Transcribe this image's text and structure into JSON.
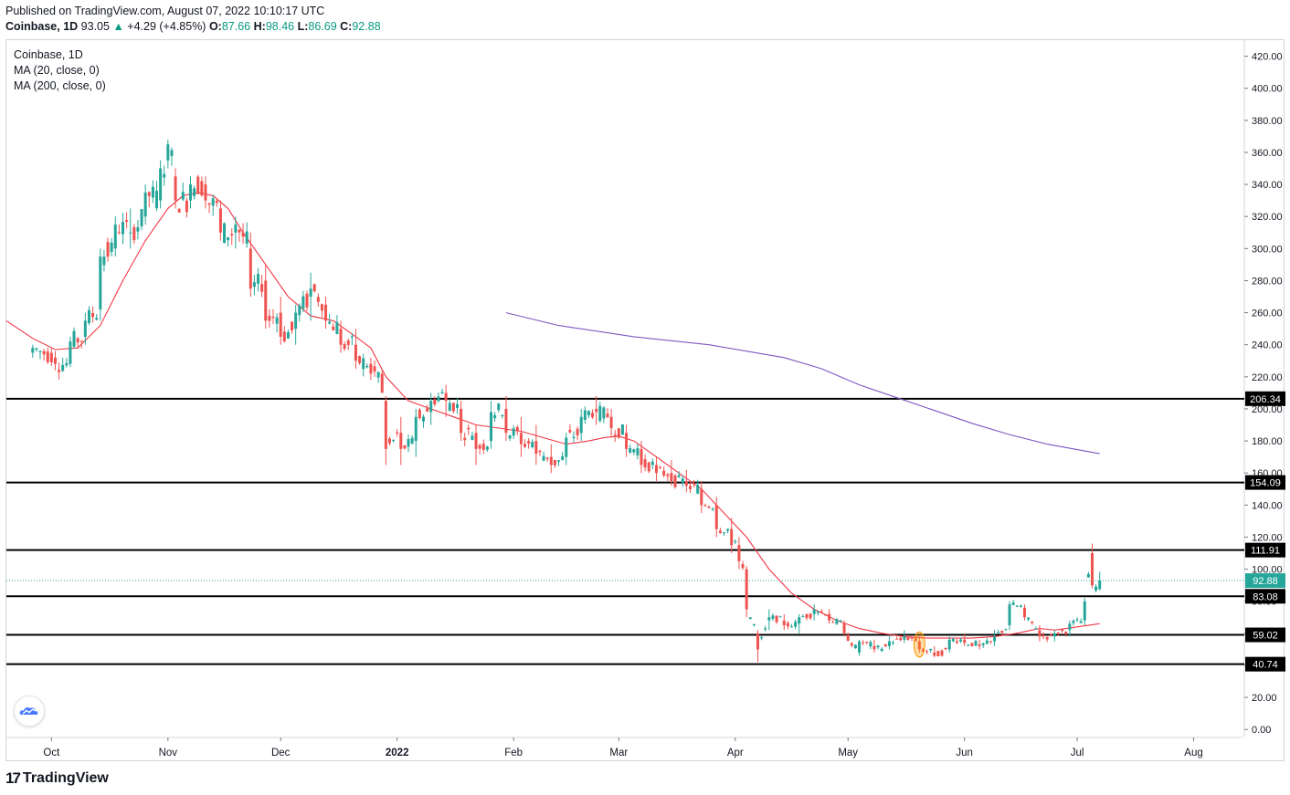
{
  "header": {
    "published": "Published on TradingView.com, August 07, 2022 10:10:17 UTC",
    "symbol": "Coinbase, 1D",
    "price": "93.05",
    "change_arrow": "▲",
    "change": "+4.29 (+4.85%)",
    "o_label": "O:",
    "o_value": "87.66",
    "h_label": "H:",
    "h_value": "98.46",
    "l_label": "L:",
    "l_value": "86.69",
    "c_label": "C:",
    "c_value": "92.88"
  },
  "legend": {
    "title": "Coinbase, 1D",
    "ma20": "MA (20, close, 0)",
    "ma200": "MA (200, close, 0)"
  },
  "footer": {
    "logo_mark": "17",
    "brand": "TradingView"
  },
  "colors": {
    "up": "#26a69a",
    "down": "#ef5350",
    "ma20": "#f23645",
    "ma200": "#7e57c2",
    "level": "#000000",
    "last_price": "#26a69a"
  },
  "chart_data": {
    "type": "candlestick",
    "title": "Coinbase, 1D",
    "ylim": [
      -5,
      430
    ],
    "y_ticks": [
      0,
      20,
      40,
      60,
      80,
      100,
      120,
      140,
      160,
      180,
      200,
      220,
      240,
      260,
      280,
      300,
      320,
      340,
      360,
      380,
      400,
      420
    ],
    "x_labels": [
      {
        "label": "Oct",
        "day": 5
      },
      {
        "label": "Nov",
        "day": 36
      },
      {
        "label": "Dec",
        "day": 66
      },
      {
        "label": "2022",
        "day": 97
      },
      {
        "label": "Feb",
        "day": 128
      },
      {
        "label": "Mar",
        "day": 156
      },
      {
        "label": "Apr",
        "day": 187
      },
      {
        "label": "May",
        "day": 217
      },
      {
        "label": "Jun",
        "day": 248
      },
      {
        "label": "Jul",
        "day": 278
      },
      {
        "label": "Aug",
        "day": 309
      }
    ],
    "day_range": [
      -7,
      322
    ],
    "levels": [
      206.34,
      154.09,
      111.91,
      83.08,
      59.02,
      40.74
    ],
    "last_price": 92.88,
    "ohlc_anchors": [
      [
        0,
        235,
        240,
        232,
        238
      ],
      [
        6,
        232,
        236,
        224,
        228
      ],
      [
        10,
        228,
        245,
        226,
        242
      ],
      [
        14,
        245,
        260,
        240,
        255
      ],
      [
        18,
        262,
        300,
        255,
        295
      ],
      [
        22,
        300,
        320,
        295,
        315
      ],
      [
        26,
        310,
        325,
        300,
        310
      ],
      [
        30,
        320,
        340,
        315,
        335
      ],
      [
        34,
        330,
        355,
        325,
        350
      ],
      [
        36,
        355,
        368,
        350,
        365
      ],
      [
        38,
        345,
        350,
        325,
        330
      ],
      [
        42,
        330,
        345,
        325,
        340
      ],
      [
        46,
        340,
        345,
        325,
        330
      ],
      [
        50,
        325,
        330,
        305,
        310
      ],
      [
        54,
        310,
        320,
        300,
        315
      ],
      [
        58,
        300,
        310,
        270,
        275
      ],
      [
        62,
        280,
        290,
        250,
        255
      ],
      [
        66,
        260,
        270,
        240,
        245
      ],
      [
        70,
        250,
        265,
        240,
        260
      ],
      [
        74,
        270,
        285,
        255,
        275
      ],
      [
        78,
        265,
        270,
        250,
        255
      ],
      [
        82,
        250,
        255,
        235,
        240
      ],
      [
        86,
        240,
        250,
        225,
        230
      ],
      [
        90,
        228,
        232,
        218,
        222
      ],
      [
        93,
        222,
        225,
        210,
        210
      ],
      [
        94,
        205,
        208,
        165,
        175
      ],
      [
        98,
        185,
        195,
        165,
        175
      ],
      [
        102,
        180,
        200,
        170,
        195
      ],
      [
        106,
        198,
        210,
        190,
        205
      ],
      [
        110,
        210,
        215,
        195,
        205
      ],
      [
        114,
        200,
        205,
        180,
        185
      ],
      [
        118,
        185,
        190,
        165,
        175
      ],
      [
        122,
        180,
        205,
        175,
        198
      ],
      [
        126,
        200,
        208,
        180,
        185
      ],
      [
        130,
        185,
        195,
        170,
        178
      ],
      [
        134,
        180,
        190,
        165,
        172
      ],
      [
        138,
        170,
        178,
        160,
        165
      ],
      [
        142,
        170,
        185,
        165,
        182
      ],
      [
        146,
        185,
        200,
        180,
        195
      ],
      [
        150,
        200,
        208,
        190,
        198
      ],
      [
        154,
        195,
        200,
        182,
        188
      ],
      [
        158,
        185,
        190,
        170,
        175
      ],
      [
        162,
        175,
        180,
        160,
        165
      ],
      [
        166,
        165,
        170,
        155,
        160
      ],
      [
        170,
        160,
        168,
        152,
        155
      ],
      [
        174,
        155,
        162,
        148,
        152
      ],
      [
        178,
        150,
        155,
        135,
        140
      ],
      [
        182,
        140,
        145,
        120,
        125
      ],
      [
        186,
        125,
        132,
        110,
        115
      ],
      [
        188,
        115,
        120,
        100,
        105
      ],
      [
        190,
        100,
        102,
        70,
        75
      ],
      [
        193,
        60,
        62,
        42,
        50
      ],
      [
        196,
        68,
        75,
        62,
        70
      ],
      [
        200,
        68,
        72,
        62,
        65
      ],
      [
        204,
        66,
        72,
        60,
        70
      ],
      [
        208,
        72,
        78,
        68,
        75
      ],
      [
        212,
        72,
        75,
        66,
        68
      ],
      [
        216,
        66,
        68,
        58,
        60
      ],
      [
        220,
        48,
        56,
        46,
        55
      ],
      [
        224,
        52,
        56,
        48,
        50
      ],
      [
        228,
        52,
        58,
        50,
        55
      ],
      [
        232,
        56,
        62,
        54,
        58
      ],
      [
        236,
        55,
        58,
        48,
        50
      ],
      [
        240,
        48,
        52,
        45,
        46
      ],
      [
        244,
        50,
        58,
        48,
        56
      ],
      [
        248,
        56,
        60,
        52,
        54
      ],
      [
        252,
        53,
        56,
        50,
        52
      ],
      [
        256,
        55,
        62,
        52,
        58
      ],
      [
        260,
        65,
        80,
        62,
        78
      ],
      [
        264,
        76,
        78,
        68,
        70
      ],
      [
        268,
        62,
        65,
        55,
        58
      ],
      [
        272,
        58,
        62,
        55,
        60
      ],
      [
        276,
        62,
        68,
        58,
        66
      ],
      [
        280,
        68,
        82,
        65,
        80
      ],
      [
        282,
        110,
        116,
        88,
        90
      ],
      [
        284,
        87.66,
        98.46,
        86.69,
        92.88
      ]
    ],
    "ma20_curve": [
      [
        -7,
        255
      ],
      [
        0,
        244
      ],
      [
        6,
        237
      ],
      [
        12,
        238
      ],
      [
        18,
        252
      ],
      [
        24,
        280
      ],
      [
        30,
        305
      ],
      [
        36,
        325
      ],
      [
        40,
        333
      ],
      [
        44,
        335
      ],
      [
        48,
        333
      ],
      [
        52,
        325
      ],
      [
        56,
        310
      ],
      [
        62,
        290
      ],
      [
        68,
        270
      ],
      [
        74,
        258
      ],
      [
        80,
        255
      ],
      [
        86,
        245
      ],
      [
        90,
        238
      ],
      [
        94,
        220
      ],
      [
        100,
        205
      ],
      [
        106,
        200
      ],
      [
        112,
        195
      ],
      [
        118,
        190
      ],
      [
        124,
        188
      ],
      [
        130,
        186
      ],
      [
        136,
        182
      ],
      [
        142,
        178
      ],
      [
        148,
        180
      ],
      [
        152,
        182
      ],
      [
        156,
        183
      ],
      [
        160,
        180
      ],
      [
        166,
        170
      ],
      [
        172,
        160
      ],
      [
        178,
        150
      ],
      [
        184,
        135
      ],
      [
        190,
        120
      ],
      [
        196,
        100
      ],
      [
        202,
        85
      ],
      [
        208,
        75
      ],
      [
        214,
        68
      ],
      [
        220,
        63
      ],
      [
        226,
        60
      ],
      [
        232,
        58
      ],
      [
        238,
        57
      ],
      [
        244,
        57
      ],
      [
        250,
        57
      ],
      [
        256,
        58
      ],
      [
        262,
        60
      ],
      [
        268,
        63
      ],
      [
        272,
        62
      ],
      [
        278,
        64
      ],
      [
        284,
        66
      ]
    ],
    "ma200_curve": [
      [
        126,
        260
      ],
      [
        140,
        252
      ],
      [
        160,
        245
      ],
      [
        180,
        240
      ],
      [
        200,
        232
      ],
      [
        210,
        225
      ],
      [
        220,
        215
      ],
      [
        230,
        207
      ],
      [
        240,
        199
      ],
      [
        250,
        191
      ],
      [
        260,
        184
      ],
      [
        270,
        178
      ],
      [
        284,
        172
      ]
    ],
    "marker_day": 236
  }
}
